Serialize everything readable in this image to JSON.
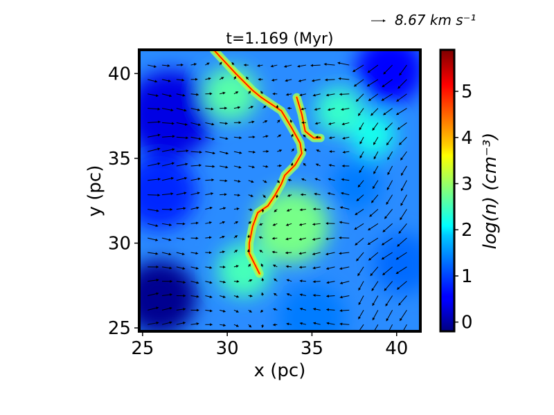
{
  "chart_data": {
    "type": "heatmap",
    "title": "t=1.169 (Myr)",
    "xlabel": "x (pc)",
    "ylabel": "y (pc)",
    "xlim": [
      24.8,
      41.4
    ],
    "ylim": [
      24.8,
      41.4
    ],
    "xticks": [
      25,
      30,
      35,
      40
    ],
    "yticks": [
      25,
      30,
      35,
      40
    ],
    "colorbar": {
      "label": "log(n) (cm⁻³)",
      "range": [
        -0.2,
        5.9
      ],
      "ticks": [
        0,
        1,
        2,
        3,
        4,
        5
      ],
      "colormap": "jet"
    },
    "quiver_key": {
      "value": 8.67,
      "label": "8.67 km s⁻¹"
    },
    "filament_path": [
      [
        29.2,
        41.4
      ],
      [
        30.5,
        40.0
      ],
      [
        31.5,
        39.0
      ],
      [
        32.0,
        38.6
      ],
      [
        33.2,
        37.8
      ],
      [
        33.8,
        36.8
      ],
      [
        34.3,
        35.9
      ],
      [
        34.4,
        35.3
      ],
      [
        34.0,
        34.6
      ],
      [
        33.4,
        34.0
      ],
      [
        33.2,
        33.5
      ],
      [
        32.8,
        32.8
      ],
      [
        32.4,
        32.2
      ],
      [
        31.8,
        31.8
      ],
      [
        31.5,
        31.0
      ],
      [
        31.3,
        30.0
      ],
      [
        31.3,
        29.4
      ],
      [
        31.6,
        28.8
      ],
      [
        31.9,
        28.2
      ]
    ],
    "filament_branch": [
      [
        34.1,
        38.6
      ],
      [
        34.4,
        37.6
      ],
      [
        34.6,
        36.6
      ],
      [
        35.1,
        36.2
      ],
      [
        35.5,
        36.2
      ]
    ],
    "density_regions": [
      {
        "x": 26.6,
        "y": 37.6,
        "r": 2.6,
        "logn": 0.4
      },
      {
        "x": 26.0,
        "y": 33.0,
        "r": 2.2,
        "logn": 0.8
      },
      {
        "x": 26.0,
        "y": 26.8,
        "r": 2.2,
        "logn": -0.1
      },
      {
        "x": 39.6,
        "y": 40.2,
        "r": 2.0,
        "logn": 0.6
      },
      {
        "x": 37.6,
        "y": 33.4,
        "r": 1.5,
        "logn": 1.3
      },
      {
        "x": 35.0,
        "y": 25.6,
        "r": 2.0,
        "logn": 1.3
      },
      {
        "x": 40.4,
        "y": 28.8,
        "r": 1.8,
        "logn": 1.2
      },
      {
        "x": 33.8,
        "y": 31.0,
        "r": 2.2,
        "logn": 2.8
      },
      {
        "x": 31.0,
        "y": 28.4,
        "r": 1.6,
        "logn": 2.5
      },
      {
        "x": 30.2,
        "y": 38.8,
        "r": 1.6,
        "logn": 2.6
      },
      {
        "x": 36.6,
        "y": 37.8,
        "r": 1.4,
        "logn": 2.4
      },
      {
        "x": 38.6,
        "y": 36.4,
        "r": 1.3,
        "logn": 2.2
      }
    ]
  }
}
